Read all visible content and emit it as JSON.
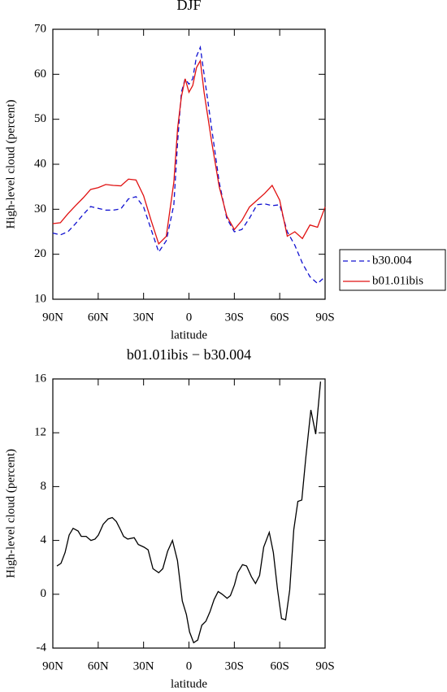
{
  "chart_data": [
    {
      "type": "line",
      "title": "DJF",
      "xlabel": "latitude",
      "ylabel": "High-level cloud (percent)",
      "xlim": [
        90,
        -90
      ],
      "xticks": [
        {
          "value": 90,
          "label": "90N"
        },
        {
          "value": 60,
          "label": "60N"
        },
        {
          "value": 30,
          "label": "30N"
        },
        0,
        {
          "value": -30,
          "label": "30S"
        },
        {
          "value": -60,
          "label": "60S"
        },
        {
          "value": -90,
          "label": "90S"
        }
      ],
      "ylim": [
        10,
        70
      ],
      "yticks": [
        10,
        20,
        30,
        40,
        50,
        60,
        70
      ],
      "legend": "right",
      "x": [
        90,
        85,
        80,
        75,
        70,
        65,
        60,
        55,
        50,
        45,
        40,
        35,
        30,
        25,
        20,
        15,
        10,
        7.5,
        5,
        2.5,
        0,
        -2.5,
        -5,
        -7.5,
        -10,
        -15,
        -20,
        -25,
        -30,
        -35,
        -40,
        -45,
        -50,
        -55,
        -60,
        -65,
        -70,
        -75,
        -80,
        -85,
        -90
      ],
      "series": [
        {
          "name": "b30.004",
          "color": "#1010d0",
          "linestyle": "dashed",
          "values": [
            24.7,
            24.3,
            25,
            26.8,
            28.8,
            30.6,
            30.2,
            29.8,
            29.8,
            30.1,
            32.3,
            32.8,
            30.5,
            25.5,
            20.5,
            23,
            31,
            45,
            56,
            59,
            57.8,
            59,
            64,
            66,
            60,
            48,
            36,
            28,
            25,
            25.5,
            28,
            31,
            31.2,
            30.8,
            31,
            25,
            22,
            18,
            15,
            13.5,
            15
          ]
        },
        {
          "name": "b01.01ibis",
          "color": "#e01010",
          "linestyle": "solid",
          "values": [
            26.8,
            27,
            29,
            30.8,
            32.5,
            34.4,
            34.8,
            35.5,
            35.3,
            35.2,
            36.7,
            36.5,
            33,
            27.5,
            22.3,
            24,
            36,
            48,
            55,
            59,
            56,
            57.5,
            61.5,
            63,
            56,
            45,
            35,
            28.5,
            25.5,
            27.5,
            30.5,
            32,
            33.5,
            35.3,
            32,
            24,
            25,
            23.5,
            26.5,
            26,
            30.5
          ]
        }
      ]
    },
    {
      "type": "line",
      "title": "b01.01ibis − b30.004",
      "xlabel": "latitude",
      "ylabel": "High-level cloud (percent)",
      "xlim": [
        90,
        -90
      ],
      "xticks": [
        {
          "value": 90,
          "label": "90N"
        },
        {
          "value": 60,
          "label": "60N"
        },
        {
          "value": 30,
          "label": "30N"
        },
        0,
        {
          "value": -30,
          "label": "30S"
        },
        {
          "value": -60,
          "label": "60S"
        },
        {
          "value": -90,
          "label": "90S"
        }
      ],
      "ylim": [
        -4,
        16
      ],
      "yticks": [
        -4,
        0,
        4,
        8,
        12,
        16
      ],
      "x": [
        87.3,
        84.6,
        81.9,
        79.2,
        76.6,
        73.3,
        71.2,
        68.0,
        64.8,
        62.1,
        59.9,
        56.7,
        53.4,
        50.7,
        48.0,
        45.3,
        43.2,
        40.5,
        36.2,
        33.5,
        29.7,
        27.0,
        23.8,
        20.0,
        17.3,
        14.1,
        10.9,
        7.6,
        4.4,
        1.7,
        -0.4,
        -3.1,
        -5.8,
        -8.5,
        -11.2,
        -13.9,
        -16.6,
        -19.3,
        -22.0,
        -25.2,
        -27.4,
        -30.1,
        -32.2,
        -35.4,
        -38.1,
        -41.3,
        -44.0,
        -46.7,
        -49.4,
        -53.1,
        -55.8,
        -58.5,
        -61.2,
        -63.9,
        -66.6,
        -69.3,
        -72.0,
        -74.6,
        -77.3,
        -80.6,
        -83.8,
        -87.0
      ],
      "series": [
        {
          "color": "#000000",
          "linestyle": "solid",
          "values": [
            2.1,
            2.3,
            3.1,
            4.4,
            4.9,
            4.7,
            4.3,
            4.3,
            4.0,
            4.1,
            4.4,
            5.2,
            5.6,
            5.7,
            5.4,
            4.8,
            4.3,
            4.1,
            4.2,
            3.7,
            3.5,
            3.3,
            1.9,
            1.6,
            1.9,
            3.2,
            4.0,
            2.5,
            -0.5,
            -1.5,
            -2.8,
            -3.6,
            -3.4,
            -2.3,
            -2.0,
            -1.3,
            -0.4,
            0.2,
            0,
            -0.3,
            -0.1,
            0.7,
            1.6,
            2.2,
            2.1,
            1.3,
            0.8,
            1.4,
            3.5,
            4.6,
            3.1,
            0.4,
            -1.8,
            -1.9,
            0.3,
            4.8,
            6.9,
            7.0,
            10.2,
            13.7,
            11.9,
            15.8
          ]
        }
      ]
    }
  ]
}
